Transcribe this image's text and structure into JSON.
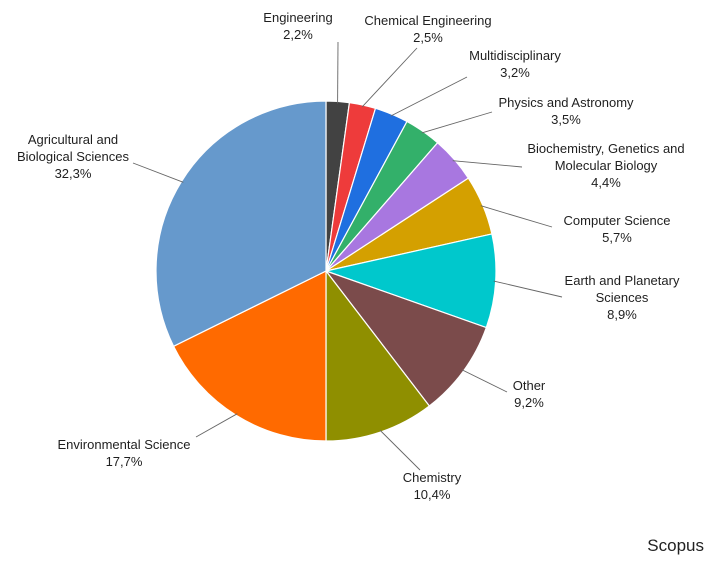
{
  "chart_data": {
    "type": "pie",
    "start_angle_deg": 0,
    "direction": "clockwise",
    "slices": [
      {
        "name": "Engineering",
        "label_lines": [
          "Engineering"
        ],
        "value": 2.2,
        "value_label": "2,2%",
        "color": "#424242"
      },
      {
        "name": "Chemical Engineering",
        "label_lines": [
          "Chemical Engineering"
        ],
        "value": 2.5,
        "value_label": "2,5%",
        "color": "#ee3b3b"
      },
      {
        "name": "Multidisciplinary",
        "label_lines": [
          "Multidisciplinary"
        ],
        "value": 3.2,
        "value_label": "3,2%",
        "color": "#1f6fe0"
      },
      {
        "name": "Physics and Astronomy",
        "label_lines": [
          "Physics and Astronomy"
        ],
        "value": 3.5,
        "value_label": "3,5%",
        "color": "#33b06a"
      },
      {
        "name": "Biochemistry, Genetics and Molecular Biology",
        "label_lines": [
          "Biochemistry, Genetics and",
          "Molecular Biology"
        ],
        "value": 4.4,
        "value_label": "4,4%",
        "color": "#a877e0"
      },
      {
        "name": "Computer Science",
        "label_lines": [
          "Computer Science"
        ],
        "value": 5.7,
        "value_label": "5,7%",
        "color": "#d4a000"
      },
      {
        "name": "Earth and Planetary Sciences",
        "label_lines": [
          "Earth and Planetary",
          "Sciences"
        ],
        "value": 8.9,
        "value_label": "8,9%",
        "color": "#00c8cc"
      },
      {
        "name": "Other",
        "label_lines": [
          "Other"
        ],
        "value": 9.2,
        "value_label": "9,2%",
        "color": "#7b4b4b"
      },
      {
        "name": "Chemistry",
        "label_lines": [
          "Chemistry"
        ],
        "value": 10.4,
        "value_label": "10,4%",
        "color": "#8f8f00"
      },
      {
        "name": "Environmental Science",
        "label_lines": [
          "Environmental Science"
        ],
        "value": 17.7,
        "value_label": "17,7%",
        "color": "#ff6a00"
      },
      {
        "name": "Agricultural and Biological Sciences",
        "label_lines": [
          "Agricultural and",
          "Biological Sciences"
        ],
        "value": 32.3,
        "value_label": "32,3%",
        "color": "#6699cc"
      }
    ]
  },
  "source": "Scopus"
}
